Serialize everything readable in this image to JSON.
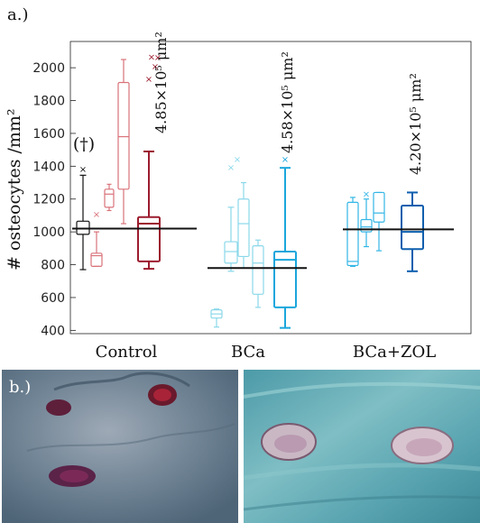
{
  "panel_a_label": "a.)",
  "panel_b_label": "b.)",
  "chart_data": {
    "type": "box",
    "ylabel": "# osteocytes /mm²",
    "ylim": [
      380,
      2160
    ],
    "yticks": [
      400,
      600,
      800,
      1000,
      1200,
      1400,
      1600,
      1800,
      2000
    ],
    "groups": [
      {
        "name": "Control",
        "color": "#d9737a",
        "dark_color": "#9c1c2e",
        "mean_line": 1020,
        "annotation": "4.85×10⁵ μm²",
        "flag": "(†)",
        "boxes": [
          {
            "kind": "specimen",
            "color": "#111111",
            "whisker_low": 770,
            "q1": 985,
            "median": 1020,
            "q3": 1065,
            "whisker_high": 1345,
            "outliers": [
              1380
            ]
          },
          {
            "kind": "specimen",
            "color": "#d9737a",
            "whisker_low": 790,
            "q1": 790,
            "median": 855,
            "q3": 870,
            "whisker_high": 1000,
            "outliers": [
              1105
            ]
          },
          {
            "kind": "specimen",
            "color": "#d9737a",
            "whisker_low": 1130,
            "q1": 1150,
            "median": 1230,
            "q3": 1260,
            "whisker_high": 1290,
            "outliers": []
          },
          {
            "kind": "specimen",
            "color": "#d9737a",
            "whisker_low": 1050,
            "q1": 1260,
            "median": 1580,
            "q3": 1910,
            "whisker_high": 2050,
            "outliers": []
          },
          {
            "kind": "group",
            "color": "#9c1c2e",
            "whisker_low": 775,
            "q1": 820,
            "median": 1050,
            "q3": 1090,
            "whisker_high": 1490,
            "outliers": [
              1930,
              2005,
              2065,
              2060
            ]
          }
        ]
      },
      {
        "name": "BCa",
        "color": "#8ad8ea",
        "dark_color": "#1aa6dc",
        "mean_line": 780,
        "annotation": "4.58×10⁵ μm²",
        "flag": "",
        "boxes": [
          {
            "kind": "specimen",
            "color": "#8ad8ea",
            "whisker_low": 420,
            "q1": 475,
            "median": 500,
            "q3": 525,
            "whisker_high": 530,
            "outliers": []
          },
          {
            "kind": "specimen",
            "color": "#8ad8ea",
            "whisker_low": 760,
            "q1": 810,
            "median": 880,
            "q3": 940,
            "whisker_high": 1150,
            "outliers": [
              1390,
              1440
            ]
          },
          {
            "kind": "specimen",
            "color": "#8ad8ea",
            "whisker_low": 780,
            "q1": 850,
            "median": 1050,
            "q3": 1200,
            "whisker_high": 1300,
            "outliers": []
          },
          {
            "kind": "specimen",
            "color": "#8ad8ea",
            "whisker_low": 540,
            "q1": 620,
            "median": 810,
            "q3": 915,
            "whisker_high": 950,
            "outliers": []
          },
          {
            "kind": "group",
            "color": "#1aa6dc",
            "whisker_low": 415,
            "q1": 540,
            "median": 830,
            "q3": 880,
            "whisker_high": 1390,
            "outliers": [
              1440
            ]
          }
        ]
      },
      {
        "name": "BCa+ZOL",
        "color": "#33b6e6",
        "dark_color": "#0d5fae",
        "mean_line": 1015,
        "annotation": "4.20×10⁵ μm²",
        "flag": "",
        "boxes": [
          {
            "kind": "specimen",
            "color": "#33b6e6",
            "whisker_low": 790,
            "q1": 795,
            "median": 820,
            "q3": 1180,
            "whisker_high": 1210,
            "outliers": []
          },
          {
            "kind": "specimen",
            "color": "#33b6e6",
            "whisker_low": 910,
            "q1": 1000,
            "median": 1030,
            "q3": 1075,
            "whisker_high": 1200,
            "outliers": [
              1230
            ]
          },
          {
            "kind": "specimen",
            "color": "#33b6e6",
            "whisker_low": 885,
            "q1": 1060,
            "median": 1115,
            "q3": 1240,
            "whisker_high": 1240,
            "outliers": []
          },
          {
            "kind": "group",
            "color": "#0d5fae",
            "whisker_low": 760,
            "q1": 895,
            "median": 1000,
            "q3": 1160,
            "whisker_high": 1240,
            "outliers": []
          }
        ]
      }
    ]
  },
  "images": [
    {
      "name": "control-micrograph",
      "description_icon": "osteocyte-stained-section"
    },
    {
      "name": "bca-micrograph",
      "description_icon": "osteocyte-stained-section"
    }
  ]
}
